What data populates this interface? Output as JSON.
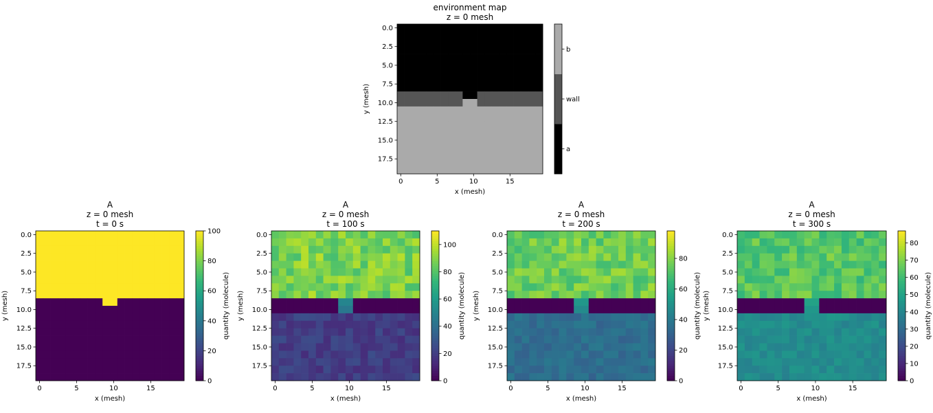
{
  "chart_data": [
    {
      "type": "heatmap",
      "id": "env",
      "title_lines": [
        "environment map",
        "z = 0 mesh"
      ],
      "xlabel": "x (mesh)",
      "ylabel": "y (mesh)",
      "grid_size": [
        20,
        20
      ],
      "xticks": [
        0,
        5,
        10,
        15
      ],
      "yticks": [
        0.0,
        2.5,
        5.0,
        7.5,
        10.0,
        12.5,
        15.0,
        17.5
      ],
      "colormap": "categorical-gray",
      "categories": [
        {
          "label": "a",
          "color": "#000000"
        },
        {
          "label": "wall",
          "color": "#555555"
        },
        {
          "label": "b",
          "color": "#aaaaaa"
        }
      ],
      "regions": {
        "top_rows": [
          0,
          8
        ],
        "wall_rows": [
          9,
          10
        ],
        "bottom_rows": [
          11,
          19
        ],
        "opening_cols": [
          9,
          10
        ],
        "opening_row9": "a",
        "opening_row10": "b"
      }
    },
    {
      "type": "heatmap",
      "id": "t0",
      "title_lines": [
        "A",
        "z = 0 mesh",
        "t = 0 s"
      ],
      "xlabel": "x (mesh)",
      "ylabel": "y (mesh)",
      "grid_size": [
        20,
        20
      ],
      "xticks": [
        0,
        5,
        10,
        15
      ],
      "yticks": [
        0.0,
        2.5,
        5.0,
        7.5,
        10.0,
        12.5,
        15.0,
        17.5
      ],
      "colormap": "viridis",
      "vmin": 0,
      "vmax": 100,
      "colorbar_label": "quantity (molecule)",
      "colorbar_ticks": [
        0,
        20,
        40,
        60,
        80,
        100
      ],
      "top_mean": 100,
      "top_noise": 0,
      "bottom_mean": 0,
      "bottom_noise": 0,
      "opening_row9": 100,
      "opening_row10": 0,
      "seed": 11
    },
    {
      "type": "heatmap",
      "id": "t100",
      "title_lines": [
        "A",
        "z = 0 mesh",
        "t = 100 s"
      ],
      "xlabel": "x (mesh)",
      "ylabel": "y (mesh)",
      "grid_size": [
        20,
        20
      ],
      "xticks": [
        0,
        5,
        10,
        15
      ],
      "yticks": [
        0.0,
        2.5,
        5.0,
        7.5,
        10.0,
        12.5,
        15.0,
        17.5
      ],
      "colormap": "viridis",
      "vmin": 0,
      "vmax": 110,
      "colorbar_label": "quantity (molecule)",
      "colorbar_ticks": [
        0,
        20,
        40,
        60,
        80,
        100
      ],
      "top_mean": 88,
      "top_noise": 11,
      "bottom_mean": 20,
      "bottom_noise": 6,
      "opening_row9": 50,
      "opening_row10": 44,
      "seed": 23
    },
    {
      "type": "heatmap",
      "id": "t200",
      "title_lines": [
        "A",
        "z = 0 mesh",
        "t = 200 s"
      ],
      "xlabel": "x (mesh)",
      "ylabel": "y (mesh)",
      "grid_size": [
        20,
        20
      ],
      "xticks": [
        0,
        5,
        10,
        15
      ],
      "yticks": [
        0.0,
        2.5,
        5.0,
        7.5,
        10.0,
        12.5,
        15.0,
        17.5
      ],
      "colormap": "viridis",
      "vmin": 0,
      "vmax": 98,
      "colorbar_label": "quantity (molecule)",
      "colorbar_ticks": [
        0,
        20,
        40,
        60,
        80
      ],
      "top_mean": 76,
      "top_noise": 9,
      "bottom_mean": 35,
      "bottom_noise": 5,
      "opening_row9": 52,
      "opening_row10": 47,
      "seed": 37
    },
    {
      "type": "heatmap",
      "id": "t300",
      "title_lines": [
        "A",
        "z = 0 mesh",
        "t = 300 s"
      ],
      "xlabel": "x (mesh)",
      "ylabel": "y (mesh)",
      "grid_size": [
        20,
        20
      ],
      "xticks": [
        0,
        5,
        10,
        15
      ],
      "yticks": [
        0.0,
        2.5,
        5.0,
        7.5,
        10.0,
        12.5,
        15.0,
        17.5
      ],
      "colormap": "viridis",
      "vmin": 0,
      "vmax": 87,
      "colorbar_label": "quantity (molecule)",
      "colorbar_ticks": [
        0,
        10,
        20,
        30,
        40,
        50,
        60,
        70,
        80
      ],
      "top_mean": 64,
      "top_noise": 8,
      "bottom_mean": 42,
      "bottom_noise": 4,
      "opening_row9": 50,
      "opening_row10": 46,
      "seed": 53
    }
  ]
}
